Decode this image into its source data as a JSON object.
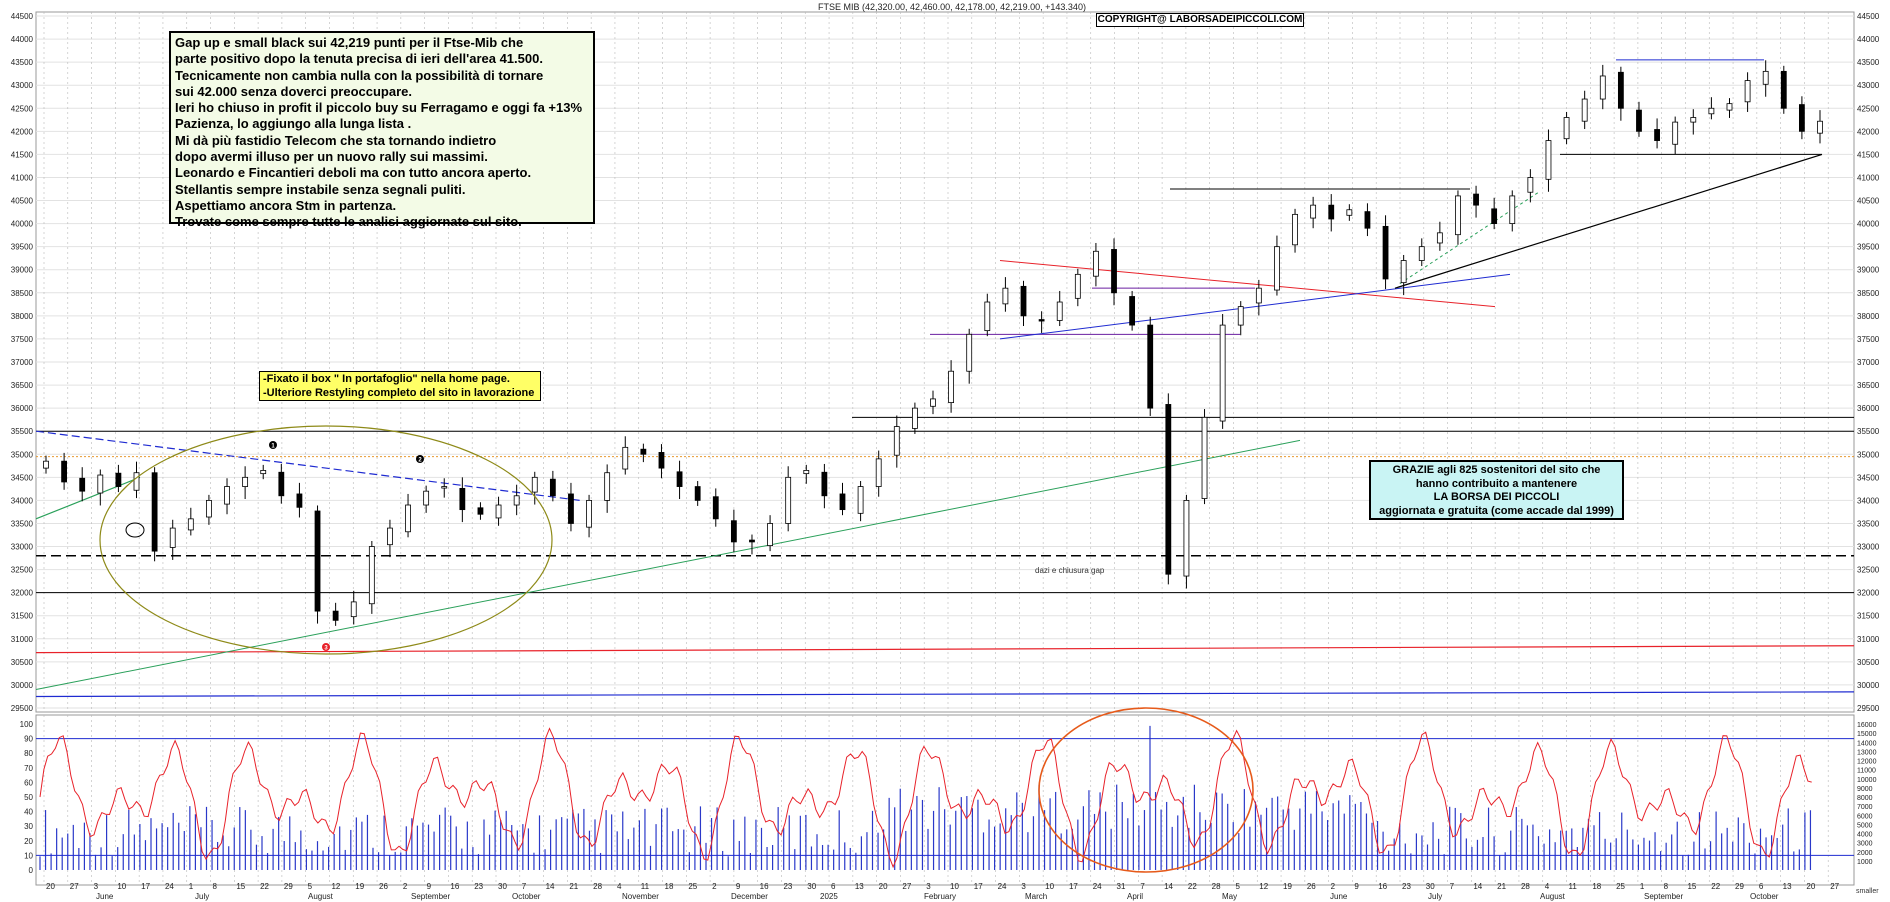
{
  "header": {
    "title": "FTSE MIB (42,320.00, 42,460.00, 42,178.00, 42,219.00, +143.340)",
    "copyright": "COPYRIGHT@ LABORSADEIPICCOLI.COM"
  },
  "commentary": {
    "lines": [
      "Gap up e small black sui 42,219 punti per il Ftse-Mib che",
      "parte positivo dopo la tenuta precisa di ieri dell'area 41.500.",
      "Tecnicamente non cambia nulla con la possibilità di tornare",
      "sui 42.000 senza doverci preoccupare.",
      "Ieri ho chiuso in profit il piccolo buy su Ferragamo e oggi fa +13%",
      "Pazienza, lo aggiungo alla lunga lista .",
      "Mi dà più fastidio Telecom che sta tornando indietro",
      "dopo avermi illuso per un nuovo rally sui massimi.",
      "Leonardo e Fincantieri deboli ma con tutto ancora aperto.",
      "Stellantis sempre instabile senza segnali puliti.",
      "Aspettiamo ancora Stm in partenza.",
      "Trovate come sempre tutte le analisi aggiornate sul sito."
    ]
  },
  "notice": {
    "lines": [
      "-Fixato il box \" In portafoglio\" nella home page.",
      "-Ulteriore Restyling completo del sito in lavorazione"
    ]
  },
  "thanks": {
    "lines": [
      "GRAZIE  agli 825  sostenitori del sito che",
      "hanno contribuito a mantenere",
      "LA BORSA DEI PICCOLI",
      "aggiornata e gratuita (come accade dal 1999)"
    ]
  },
  "annotations": {
    "gap_note": "dazi e chiusura gap",
    "markers": [
      "1",
      "2",
      "3"
    ],
    "corner_note": "smaller"
  },
  "colors": {
    "candle": "#000000",
    "resistance": "#1f2bd1",
    "uptrend": "#2aa05a",
    "downtrend_red": "#e8222a",
    "oscillator": "#e8222a",
    "volume": "#2a38c9",
    "ellipse_price": "#8e8a18",
    "ellipse_osc": "#e65a1a",
    "grid": "#b8b8b8"
  },
  "chart_data": {
    "type": "candlestick",
    "title": "FTSE MIB",
    "ylim": [
      29500,
      44500
    ],
    "y_ticks": [
      29500,
      30000,
      30500,
      31000,
      31500,
      32000,
      32500,
      33000,
      33500,
      34000,
      34500,
      35000,
      35500,
      36000,
      36500,
      37000,
      37500,
      38000,
      38500,
      39000,
      39500,
      40000,
      40500,
      41000,
      41500,
      42000,
      42500,
      43000,
      43500,
      44000,
      44500
    ],
    "x_day_labels": [
      "20",
      "27",
      "3",
      "10",
      "17",
      "24",
      "1",
      "8",
      "15",
      "22",
      "29",
      "5",
      "12",
      "19",
      "26",
      "2",
      "9",
      "16",
      "23",
      "30",
      "7",
      "14",
      "21",
      "28",
      "4",
      "11",
      "18",
      "25",
      "2",
      "9",
      "16",
      "23",
      "30",
      "6",
      "13",
      "20",
      "27",
      "3",
      "10",
      "17",
      "24",
      "3",
      "10",
      "17",
      "24",
      "31",
      "7",
      "14",
      "22",
      "28",
      "5",
      "12",
      "19",
      "26",
      "2",
      "9",
      "16",
      "23",
      "30",
      "7",
      "14",
      "21",
      "28",
      "4",
      "11",
      "18",
      "25",
      "1",
      "8",
      "15",
      "22",
      "29",
      "6",
      "13",
      "20",
      "27"
    ],
    "x_month_labels": [
      "June",
      "July",
      "August",
      "September",
      "October",
      "November",
      "December",
      "2025",
      "February",
      "March",
      "April",
      "May",
      "June",
      "July",
      "August",
      "September",
      "October"
    ],
    "close_series": [
      34850,
      34400,
      34200,
      34550,
      34300,
      34600,
      32900,
      33400,
      33600,
      34000,
      34300,
      34500,
      34650,
      34100,
      33850,
      31600,
      31400,
      31800,
      33000,
      33400,
      33900,
      34200,
      34300,
      33800,
      33700,
      33900,
      34100,
      34500,
      34100,
      33500,
      34000,
      34600,
      35150,
      35000,
      34700,
      34300,
      34000,
      33600,
      33100,
      33100,
      33500,
      34500,
      34650,
      34100,
      33800,
      34300,
      34900,
      35600,
      36000,
      36200,
      36800,
      37600,
      38300,
      38600,
      38000,
      37900,
      38300,
      38900,
      39400,
      38500,
      37800,
      36000,
      32400,
      34000,
      35800,
      37800,
      38200,
      38600,
      39500,
      40200,
      40400,
      40100,
      40300,
      39900,
      38800,
      39200,
      39500,
      39800,
      40600,
      40400,
      40000,
      40600,
      41000,
      41800,
      42300,
      42700,
      43200,
      42500,
      42000,
      41800,
      42200,
      42300,
      42500,
      42600,
      43100,
      43300,
      42500,
      42000,
      42219
    ],
    "volume_ylim": [
      0,
      16000
    ],
    "volume_ticks": [
      1000,
      2000,
      3000,
      4000,
      5000,
      6000,
      7000,
      8000,
      9000,
      10000,
      11000,
      12000,
      13000,
      14000,
      15000,
      16000
    ],
    "oscillator_ylim": [
      0,
      100
    ],
    "oscillator_ticks": [
      0,
      10,
      20,
      30,
      40,
      50,
      60,
      70,
      80,
      90,
      100
    ],
    "oscillator_levels": [
      10,
      90
    ],
    "horizontal_levels": [
      {
        "value": 35500,
        "color": "#000000",
        "style": "solid"
      },
      {
        "value": 35800,
        "color": "#000000",
        "style": "solid"
      },
      {
        "value": 34950,
        "color": "#e89a30",
        "style": "dotted"
      },
      {
        "value": 32800,
        "color": "#000000",
        "style": "dashed"
      },
      {
        "value": 32000,
        "color": "#000000",
        "style": "solid"
      },
      {
        "value": 40750,
        "color": "#000000",
        "style": "solid"
      },
      {
        "value": 41500,
        "color": "#000000",
        "style": "solid"
      },
      {
        "value": 43550,
        "color": "#1f2bd1",
        "style": "solid"
      },
      {
        "value": 38600,
        "color": "#6a1fa0",
        "style": "solid"
      },
      {
        "value": 37600,
        "color": "#6a1fa0",
        "style": "solid"
      }
    ]
  }
}
